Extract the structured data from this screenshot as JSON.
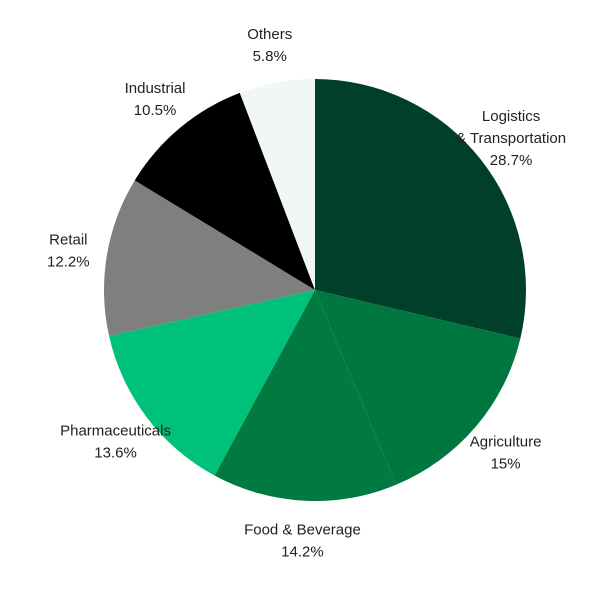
{
  "chart_data": {
    "type": "pie",
    "categories": [
      "Logistics & Transportation",
      "Agriculture",
      "Food & Beverage",
      "Pharmaceuticals",
      "Retail",
      "Industrial",
      "Others"
    ],
    "values": [
      28.7,
      15,
      14.2,
      13.6,
      12.2,
      10.5,
      5.8
    ],
    "value_labels": [
      "28.7%",
      "15%",
      "14.2%",
      "13.6%",
      "12.2%",
      "10.5%",
      "5.8%"
    ],
    "colors": [
      "#00402a",
      "#00773e",
      "#007a40",
      "#00c179",
      "#7f7f7f",
      "#000000",
      "#f1f7f4"
    ]
  }
}
